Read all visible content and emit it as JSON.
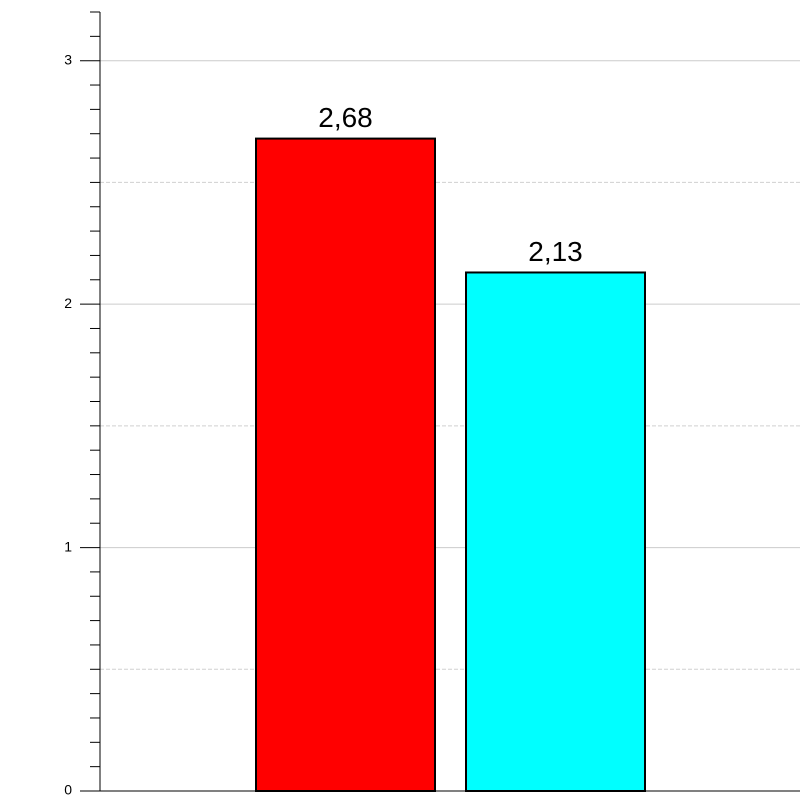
{
  "chart_data": {
    "type": "bar",
    "categories": [
      null,
      null
    ],
    "values": [
      2.68,
      2.13
    ],
    "value_labels": [
      "2,68",
      "2,13"
    ],
    "colors": [
      "#ff0000",
      "#00ffff"
    ],
    "ylim": [
      0,
      3.2
    ],
    "yticks": [
      0,
      1,
      2,
      3
    ],
    "yminorticks": [
      0.1,
      0.2,
      0.3,
      0.4,
      0.5,
      0.6,
      0.7,
      0.8,
      0.9,
      1.1,
      1.2,
      1.3,
      1.4,
      1.5,
      1.6,
      1.7,
      1.8,
      1.9,
      2.1,
      2.2,
      2.3,
      2.4,
      2.5,
      2.6,
      2.7,
      2.8,
      2.9,
      3.1,
      3.2
    ],
    "yminorgrid": [
      0.5,
      1.5,
      2.5
    ],
    "grid": true
  }
}
